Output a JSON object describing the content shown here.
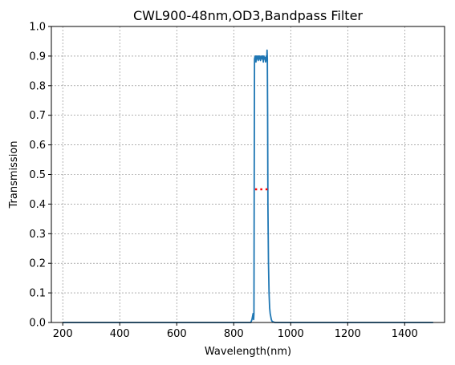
{
  "chart_data": {
    "type": "line",
    "title": "CWL900-48nm,OD3,Bandpass Filter",
    "xlabel": "Wavelength(nm)",
    "ylabel": "Transmission",
    "xlim": [
      160,
      1540
    ],
    "ylim": [
      0,
      1.0
    ],
    "xticks": [
      200,
      400,
      600,
      800,
      1000,
      1200,
      1400
    ],
    "xtick_labels": [
      "200",
      "400",
      "600",
      "800",
      "1000",
      "1200",
      "1400"
    ],
    "yticks": [
      0,
      0.1,
      0.2,
      0.3,
      0.4,
      0.5,
      0.6,
      0.7,
      0.8,
      0.9,
      1.0
    ],
    "ytick_labels": [
      "0.0",
      "0.1",
      "0.2",
      "0.3",
      "0.4",
      "0.5",
      "0.6",
      "0.7",
      "0.8",
      "0.9",
      "1.0"
    ],
    "grid": true,
    "series": [
      {
        "color": "#1f77b4",
        "style": "solid",
        "x": [
          200,
          400,
          600,
          800,
          860,
          864,
          866,
          868,
          870,
          871,
          872,
          873,
          874,
          876,
          878,
          880,
          882,
          884,
          886,
          888,
          890,
          892,
          894,
          896,
          898,
          900,
          902,
          904,
          906,
          908,
          910,
          912,
          914,
          916,
          917,
          918,
          919,
          920,
          922,
          924,
          926,
          928,
          930,
          932,
          934,
          938,
          945,
          1000,
          1200,
          1500
        ],
        "y": [
          0,
          0,
          0,
          0,
          0,
          0.01,
          0.02,
          0.03,
          0.01,
          0.03,
          0.5,
          0.89,
          0.895,
          0.9,
          0.88,
          0.9,
          0.89,
          0.9,
          0.885,
          0.9,
          0.89,
          0.9,
          0.885,
          0.895,
          0.9,
          0.89,
          0.9,
          0.88,
          0.9,
          0.89,
          0.895,
          0.88,
          0.9,
          0.885,
          0.92,
          0.89,
          0.7,
          0.4,
          0.2,
          0.1,
          0.05,
          0.03,
          0.02,
          0.01,
          0.005,
          0.002,
          0,
          0,
          0,
          0
        ]
      },
      {
        "color": "#ff0000",
        "style": "dotted",
        "x": [
          875,
          926
        ],
        "y": [
          0.45,
          0.45
        ]
      }
    ]
  }
}
